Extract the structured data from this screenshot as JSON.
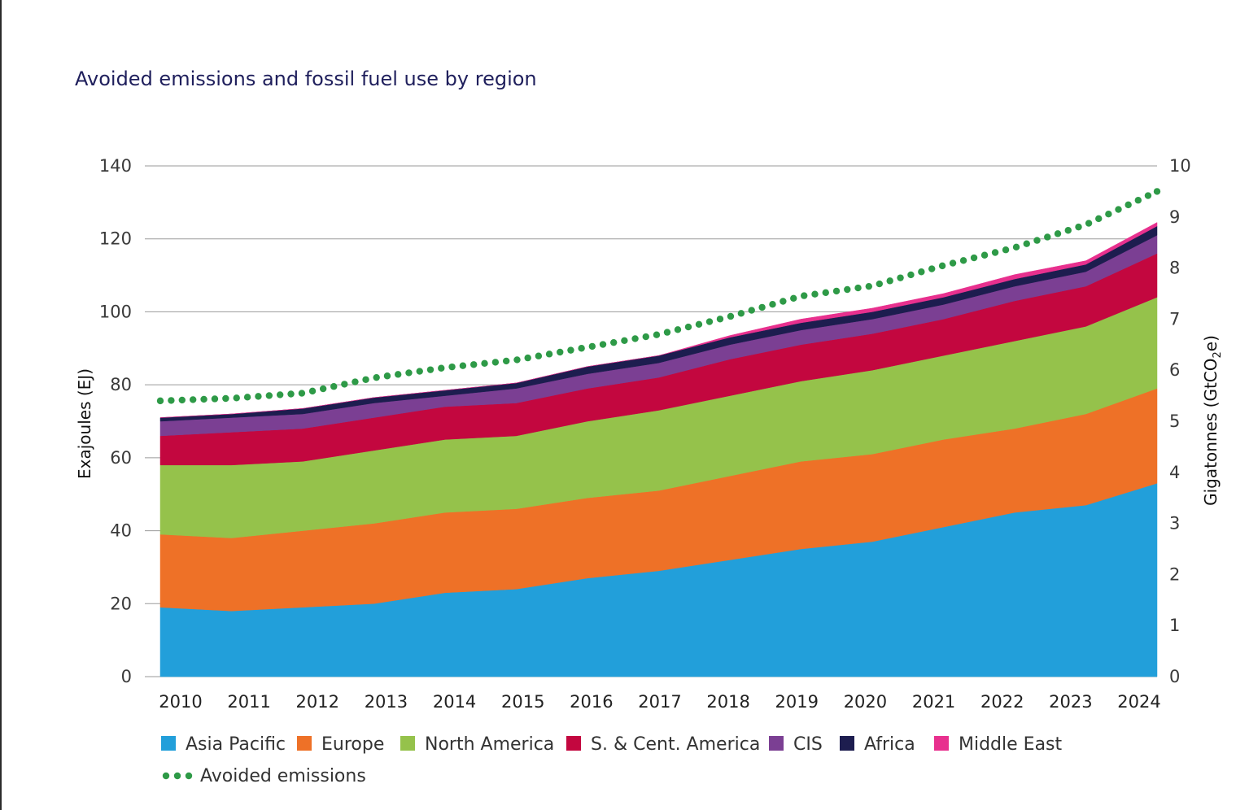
{
  "chart_data": {
    "type": "area",
    "title": "Avoided emissions and fossil fuel use by region",
    "ylabel": "Exajoules (EJ)",
    "ylabel_right_prefix": "Gigatonnes (GtCO",
    "ylabel_right_sub": "2",
    "ylabel_right_suffix": "e)",
    "ylim": [
      0,
      140
    ],
    "ylim_right": [
      0,
      10
    ],
    "yticks": [
      0,
      20,
      40,
      60,
      80,
      100,
      120,
      140
    ],
    "yticks_right": [
      0,
      1,
      2,
      3,
      4,
      5,
      6,
      7,
      8,
      9,
      10
    ],
    "grid": true,
    "stacked": true,
    "legend_placement": "bottom",
    "categories": [
      "2010",
      "2011",
      "2012",
      "2013",
      "2014",
      "2015",
      "2016",
      "2017",
      "2018",
      "2019",
      "2020",
      "2021",
      "2022",
      "2023",
      "2024"
    ],
    "series": [
      {
        "name": "Asia Pacific",
        "color": "#229fda",
        "values": [
          19,
          18,
          19,
          20,
          23,
          24,
          27,
          29,
          32,
          35,
          37,
          41,
          45,
          47,
          53
        ]
      },
      {
        "name": "Europe",
        "color": "#ee7127",
        "values": [
          20,
          20,
          21,
          22,
          22,
          22,
          22,
          22,
          23,
          24,
          24,
          24,
          23,
          25,
          26
        ]
      },
      {
        "name": "North America",
        "color": "#95c24b",
        "values": [
          19,
          20,
          19,
          20,
          20,
          20,
          21,
          22,
          22,
          22,
          23,
          23,
          24,
          24,
          25
        ]
      },
      {
        "name": "S. & Cent. America",
        "color": "#c3073f",
        "values": [
          8,
          9,
          9,
          9,
          9,
          9,
          9,
          9,
          10,
          10,
          10,
          10,
          11,
          11,
          12
        ]
      },
      {
        "name": "CIS",
        "color": "#7b3f93",
        "values": [
          4,
          4,
          4,
          4,
          3,
          4,
          4,
          4,
          4,
          4,
          4,
          4,
          4,
          4,
          5
        ]
      },
      {
        "name": "Africa",
        "color": "#1d1d4f",
        "values": [
          1,
          1,
          1.5,
          1.5,
          1.5,
          1.5,
          2,
          2,
          2,
          2,
          2,
          2,
          2,
          2,
          2.5
        ]
      },
      {
        "name": "Middle East",
        "color": "#e8308e",
        "values": [
          0,
          0,
          0,
          0,
          0,
          0,
          0,
          0,
          0.5,
          1,
          1,
          1,
          1.2,
          1,
          1
        ]
      }
    ],
    "line_series": {
      "name": "Avoided emissions",
      "color": "#2e9a47",
      "axis": "right",
      "values": [
        5.4,
        5.45,
        5.55,
        5.85,
        6.05,
        6.2,
        6.45,
        6.7,
        7.05,
        7.45,
        7.65,
        8.05,
        8.4,
        8.85,
        9.5
      ]
    }
  }
}
